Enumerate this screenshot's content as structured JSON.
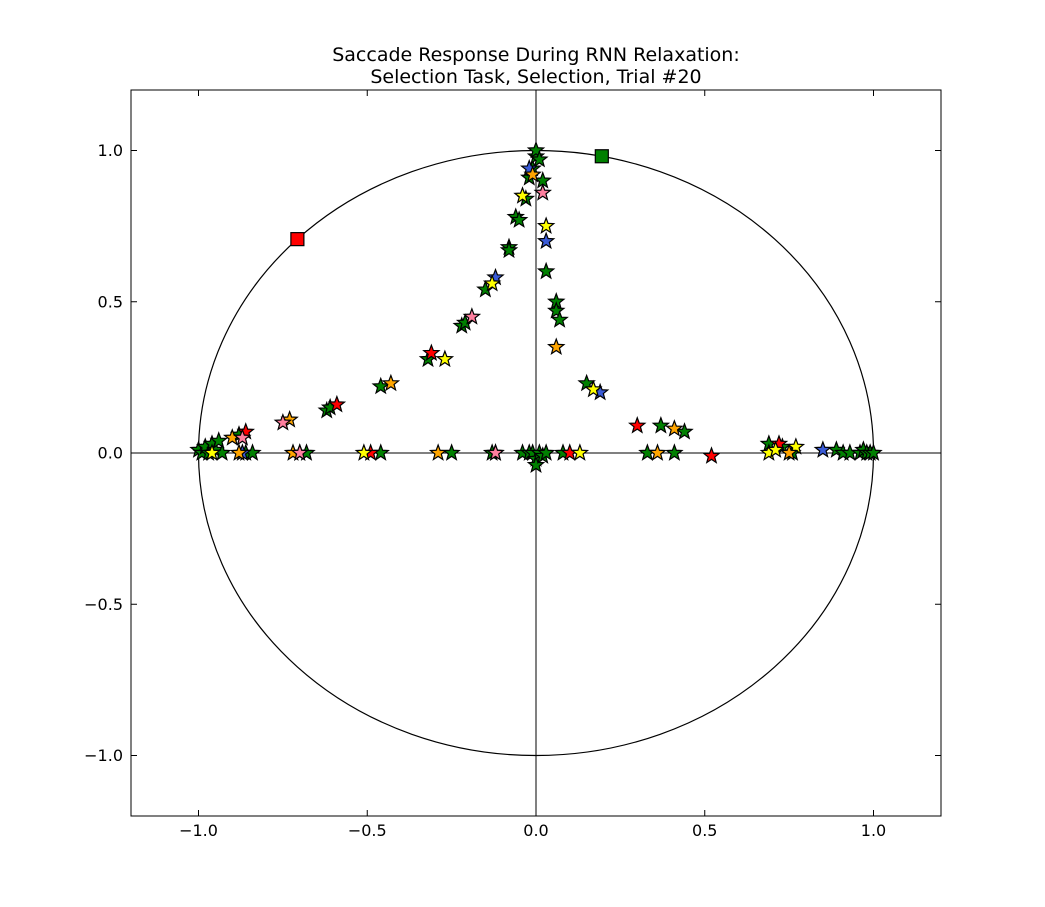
{
  "chart_data": {
    "type": "scatter",
    "title_lines": [
      "Saccade Response During RNN Relaxation:",
      "Selection Task, Selection, Trial #20"
    ],
    "xlim": [
      -1.2,
      1.2
    ],
    "ylim": [
      -1.2,
      1.2
    ],
    "x_ticks": [
      -1.0,
      -0.5,
      0.0,
      0.5,
      1.0
    ],
    "y_ticks": [
      -1.0,
      -0.5,
      0.0,
      0.5,
      1.0
    ],
    "x_tick_labels": [
      "−1.0",
      "−0.5",
      "0.0",
      "0.5",
      "1.0"
    ],
    "y_tick_labels": [
      "−1.0",
      "−0.5",
      "0.0",
      "0.5",
      "1.0"
    ],
    "unit_circle": true,
    "reference_axes": true,
    "colors": {
      "green": "#008000",
      "red": "#ff0000",
      "blue": "#3a5bd6",
      "yellow": "#ffff00",
      "orange": "#ffa500",
      "pink": "#ff7f9f"
    },
    "target_markers": [
      {
        "x": -0.707,
        "y": 0.707,
        "color": "red"
      },
      {
        "x": 0.195,
        "y": 0.981,
        "color": "green"
      }
    ],
    "series": [
      {
        "color": "green",
        "points": [
          [
            -1.0,
            0.01
          ],
          [
            -0.99,
            0.0
          ],
          [
            -0.98,
            0.02
          ],
          [
            -0.97,
            0.0
          ],
          [
            -0.96,
            0.03
          ],
          [
            -0.95,
            0.01
          ],
          [
            -0.94,
            0.04
          ],
          [
            -0.93,
            0.0
          ],
          [
            -0.88,
            0.06
          ],
          [
            -0.86,
            0.0
          ],
          [
            -0.84,
            0.0
          ],
          [
            -0.7,
            0.0
          ],
          [
            -0.68,
            0.0
          ],
          [
            -0.62,
            0.14
          ],
          [
            -0.61,
            0.15
          ],
          [
            -0.46,
            0.22
          ],
          [
            -0.46,
            0.0
          ],
          [
            -0.32,
            0.31
          ],
          [
            -0.25,
            0.0
          ],
          [
            -0.22,
            0.42
          ],
          [
            -0.21,
            0.43
          ],
          [
            -0.15,
            0.54
          ],
          [
            -0.13,
            0.0
          ],
          [
            -0.12,
            0.0
          ],
          [
            -0.08,
            0.68
          ],
          [
            -0.08,
            0.67
          ],
          [
            -0.06,
            0.78
          ],
          [
            -0.05,
            0.77
          ],
          [
            -0.04,
            0.0
          ],
          [
            -0.03,
            0.84
          ],
          [
            -0.02,
            0.0
          ],
          [
            -0.02,
            0.91
          ],
          [
            -0.01,
            0.94
          ],
          [
            -0.01,
            0.0
          ],
          [
            0.0,
            0.98
          ],
          [
            0.0,
            1.0
          ],
          [
            0.0,
            -0.02
          ],
          [
            0.0,
            -0.04
          ],
          [
            0.01,
            0.97
          ],
          [
            0.01,
            0.0
          ],
          [
            0.02,
            0.9
          ],
          [
            0.02,
            -0.01
          ],
          [
            0.03,
            0.6
          ],
          [
            0.03,
            0.0
          ],
          [
            0.06,
            0.5
          ],
          [
            0.06,
            0.47
          ],
          [
            0.07,
            0.44
          ],
          [
            0.08,
            0.0
          ],
          [
            0.15,
            0.23
          ],
          [
            0.33,
            0.0
          ],
          [
            0.37,
            0.09
          ],
          [
            0.41,
            0.0
          ],
          [
            0.44,
            0.07
          ],
          [
            0.69,
            0.03
          ],
          [
            0.73,
            0.02
          ],
          [
            0.76,
            0.0
          ],
          [
            0.89,
            0.01
          ],
          [
            0.91,
            0.0
          ],
          [
            0.93,
            0.0
          ],
          [
            0.96,
            0.0
          ],
          [
            0.97,
            0.01
          ],
          [
            0.98,
            0.0
          ],
          [
            0.99,
            0.0
          ],
          [
            1.0,
            0.0
          ]
        ]
      },
      {
        "color": "red",
        "points": [
          [
            -0.86,
            0.07
          ],
          [
            -0.59,
            0.16
          ],
          [
            -0.49,
            0.0
          ],
          [
            -0.31,
            0.33
          ],
          [
            0.1,
            0.0
          ],
          [
            0.3,
            0.09
          ],
          [
            0.52,
            -0.01
          ],
          [
            0.72,
            0.03
          ]
        ]
      },
      {
        "color": "blue",
        "points": [
          [
            -0.87,
            0.0
          ],
          [
            -0.12,
            0.58
          ],
          [
            -0.02,
            0.94
          ],
          [
            0.03,
            0.7
          ],
          [
            0.19,
            0.2
          ],
          [
            0.85,
            0.01
          ]
        ]
      },
      {
        "color": "yellow",
        "points": [
          [
            -0.96,
            0.0
          ],
          [
            -0.51,
            0.0
          ],
          [
            -0.27,
            0.31
          ],
          [
            -0.13,
            0.56
          ],
          [
            -0.04,
            0.85
          ],
          [
            0.03,
            0.75
          ],
          [
            0.17,
            0.21
          ],
          [
            0.69,
            0.0
          ],
          [
            0.71,
            0.01
          ],
          [
            0.77,
            0.02
          ],
          [
            0.13,
            0.0
          ]
        ]
      },
      {
        "color": "orange",
        "points": [
          [
            -0.9,
            0.05
          ],
          [
            -0.73,
            0.11
          ],
          [
            -0.72,
            0.0
          ],
          [
            -0.43,
            0.23
          ],
          [
            -0.29,
            0.0
          ],
          [
            -0.01,
            0.92
          ],
          [
            0.06,
            0.35
          ],
          [
            0.36,
            0.0
          ],
          [
            0.41,
            0.08
          ],
          [
            0.75,
            0.0
          ],
          [
            -0.88,
            0.0
          ]
        ]
      },
      {
        "color": "pink",
        "points": [
          [
            -0.87,
            0.05
          ],
          [
            -0.75,
            0.1
          ],
          [
            -0.7,
            0.0
          ],
          [
            -0.19,
            0.45
          ],
          [
            -0.12,
            0.0
          ],
          [
            0.02,
            0.86
          ]
        ]
      }
    ]
  }
}
